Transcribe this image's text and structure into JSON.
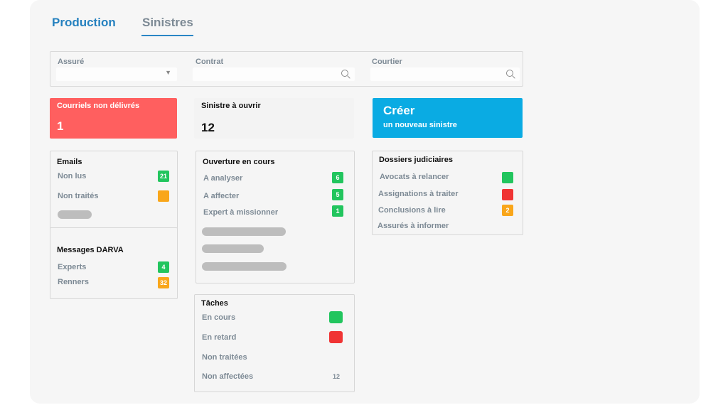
{
  "tabs": {
    "production": "Production",
    "sinistres": "Sinistres"
  },
  "filters": {
    "assure": "Assuré",
    "contrat": "Contrat",
    "courtier": "Courtier"
  },
  "kpis": {
    "courriels": {
      "title": "Courriels non délivrés",
      "value": "1"
    },
    "sinistre": {
      "title": "Sinistre à ouvrir",
      "value": "12"
    },
    "creer": {
      "title": "Créer",
      "subtitle": "un nouveau sinistre"
    }
  },
  "emails": {
    "title": "Emails",
    "non_lus": "Non lus",
    "non_lus_count": "21",
    "non_traites": "Non traités"
  },
  "darva": {
    "title": "Messages DARVA",
    "experts": "Experts",
    "experts_count": "4",
    "renners": "Renners",
    "renners_count": "32"
  },
  "ouverture": {
    "title": "Ouverture en cours",
    "analyser": "A analyser",
    "analyser_count": "6",
    "affecter": "A affecter",
    "affecter_count": "5",
    "expert": "Expert à missionner",
    "expert_count": "1"
  },
  "taches": {
    "title": "Tâches",
    "en_cours": "En cours",
    "en_retard": "En retard",
    "non_traitees": "Non traitées",
    "non_affectees": "Non affectées",
    "non_affectees_count": "12"
  },
  "judiciaires": {
    "title": "Dossiers judiciaires",
    "avocats": "Avocats à relancer",
    "assignations": "Assignations à traiter",
    "conclusions": "Conclusions à lire",
    "conclusions_count": "2",
    "assures": "Assurés à informer"
  },
  "colors": {
    "accent": "#2581bf",
    "red": "#ff5f5f",
    "cyan": "#0aabe3",
    "green": "#22c55e",
    "orange": "#f9a61a"
  }
}
